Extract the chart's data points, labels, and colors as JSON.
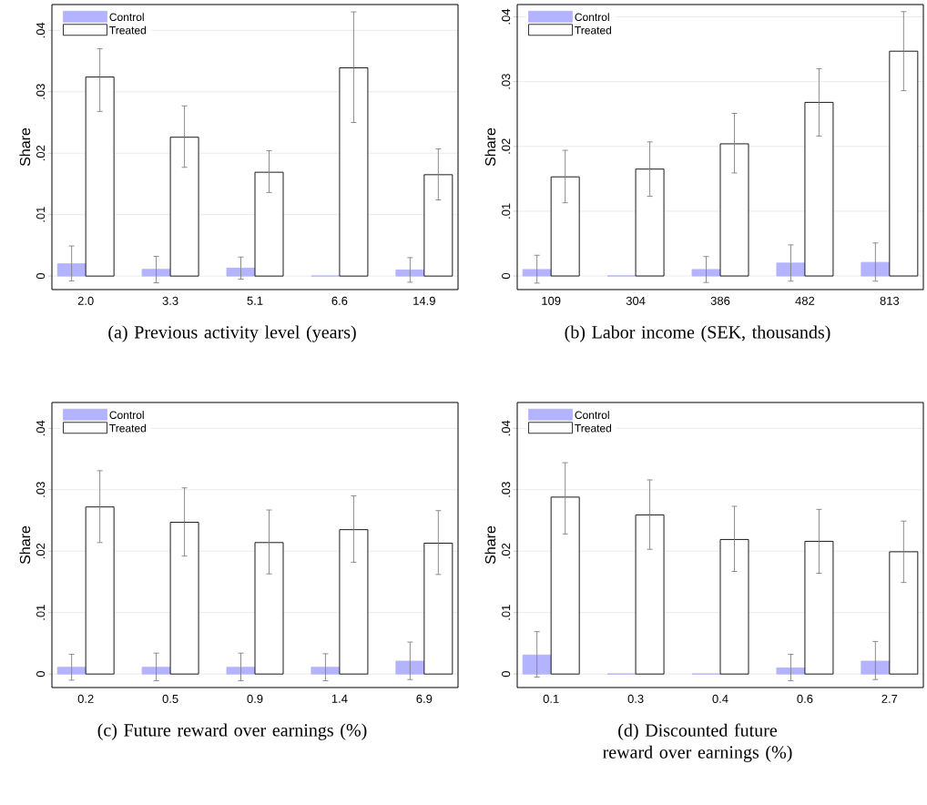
{
  "chart_data": [
    {
      "type": "bar",
      "title": "(a) Previous activity level (years)",
      "ylabel": "Share",
      "categories": [
        "2.0",
        "3.3",
        "5.1",
        "6.6",
        "14.9"
      ],
      "series": [
        {
          "name": "Control",
          "color": "#b3b3ff",
          "values": [
            0.002,
            0.0011,
            0.0013,
            0,
            0.001
          ],
          "errors": [
            [
              -0.0008,
              0.0049
            ],
            [
              -0.0011,
              0.0032
            ],
            [
              -0.0005,
              0.0031
            ],
            null,
            [
              -0.001,
              0.003
            ]
          ]
        },
        {
          "name": "Treated",
          "color": "#ffffff",
          "values": [
            0.0324,
            0.0226,
            0.0169,
            0.0339,
            0.0165
          ],
          "errors": [
            [
              0.0268,
              0.037
            ],
            [
              0.0177,
              0.0277
            ],
            [
              0.0136,
              0.0204
            ],
            [
              0.025,
              0.043
            ],
            [
              0.0124,
              0.0207
            ]
          ]
        }
      ],
      "ylim": [
        -0.0022,
        0.0442
      ],
      "yticks": [
        0,
        {
          "value": 0.01,
          "label": ".01"
        },
        {
          "value": 0.02,
          "label": ".02"
        },
        {
          "value": 0.03,
          "label": ".03"
        },
        {
          "value": 0.04,
          "label": ".04"
        }
      ],
      "grid": "y",
      "legend": "top left"
    },
    {
      "type": "bar",
      "title": "(b) Labor income (SEK, thousands)",
      "ylabel": "Share",
      "categories": [
        "109",
        "304",
        "386",
        "482",
        "813"
      ],
      "series": [
        {
          "name": "Control",
          "color": "#b3b3ff",
          "values": [
            0.001,
            0,
            0.001,
            0.002,
            0.0021
          ],
          "errors": [
            [
              -0.0011,
              0.0032
            ],
            null,
            [
              -0.001,
              0.003
            ],
            [
              -0.0008,
              0.0048
            ],
            [
              -0.0008,
              0.0051
            ]
          ]
        },
        {
          "name": "Treated",
          "color": "#ffffff",
          "values": [
            0.0153,
            0.0165,
            0.0204,
            0.0268,
            0.0347
          ],
          "errors": [
            [
              0.0113,
              0.0194
            ],
            [
              0.0123,
              0.0207
            ],
            [
              0.0159,
              0.0251
            ],
            [
              0.0216,
              0.032
            ],
            [
              0.0286,
              0.0408
            ]
          ]
        }
      ],
      "ylim": [
        -0.0021,
        0.0419
      ],
      "yticks": [
        0,
        {
          "value": 0.01,
          "label": ".01"
        },
        {
          "value": 0.02,
          "label": ".02"
        },
        {
          "value": 0.03,
          "label": ".03"
        },
        {
          "value": 0.04,
          "label": ".04"
        }
      ],
      "grid": "y",
      "legend": "top left"
    },
    {
      "type": "bar",
      "title": "(c) Future reward over earnings (%)",
      "ylabel": "Share",
      "categories": [
        "0.2",
        "0.5",
        "0.9",
        "1.4",
        "6.9"
      ],
      "series": [
        {
          "name": "Control",
          "color": "#b3b3ff",
          "values": [
            0.0011,
            0.0011,
            0.0011,
            0.0011,
            0.0021
          ],
          "errors": [
            [
              -0.001,
              0.0032
            ],
            [
              -0.0011,
              0.0034
            ],
            [
              -0.0011,
              0.0034
            ],
            [
              -0.0011,
              0.0033
            ],
            [
              -0.0009,
              0.0052
            ]
          ]
        },
        {
          "name": "Treated",
          "color": "#ffffff",
          "values": [
            0.0272,
            0.0247,
            0.0214,
            0.0235,
            0.0213
          ],
          "errors": [
            [
              0.0214,
              0.0331
            ],
            [
              0.0192,
              0.0303
            ],
            [
              0.0163,
              0.0267
            ],
            [
              0.0182,
              0.029
            ],
            [
              0.0162,
              0.0266
            ]
          ]
        }
      ],
      "ylim": [
        -0.0022,
        0.0442
      ],
      "yticks": [
        0,
        {
          "value": 0.01,
          "label": ".01"
        },
        {
          "value": 0.02,
          "label": ".02"
        },
        {
          "value": 0.03,
          "label": ".03"
        },
        {
          "value": 0.04,
          "label": ".04"
        }
      ],
      "grid": "y",
      "legend": "top left"
    },
    {
      "type": "bar",
      "title": "(d) Discounted future reward over earnings (%)",
      "ylabel": "Share",
      "categories": [
        "0.1",
        "0.3",
        "0.4",
        "0.6",
        "2.7"
      ],
      "series": [
        {
          "name": "Control",
          "color": "#b3b3ff",
          "values": [
            0.0031,
            0,
            0,
            0.001,
            0.0021
          ],
          "errors": [
            [
              -0.0005,
              0.0069
            ],
            null,
            null,
            [
              -0.0011,
              0.0032
            ],
            [
              -0.0009,
              0.0053
            ]
          ]
        },
        {
          "name": "Treated",
          "color": "#ffffff",
          "values": [
            0.0288,
            0.0259,
            0.0219,
            0.0216,
            0.0199
          ],
          "errors": [
            [
              0.0228,
              0.0344
            ],
            [
              0.0203,
              0.0316
            ],
            [
              0.0167,
              0.0273
            ],
            [
              0.0164,
              0.0268
            ],
            [
              0.0149,
              0.0249
            ]
          ]
        }
      ],
      "ylim": [
        -0.0022,
        0.0442
      ],
      "yticks": [
        0,
        {
          "value": 0.01,
          "label": ".01"
        },
        {
          "value": 0.02,
          "label": ".02"
        },
        {
          "value": 0.03,
          "label": ".03"
        },
        {
          "value": 0.04,
          "label": ".04"
        }
      ],
      "grid": "y",
      "legend": "top left"
    }
  ]
}
